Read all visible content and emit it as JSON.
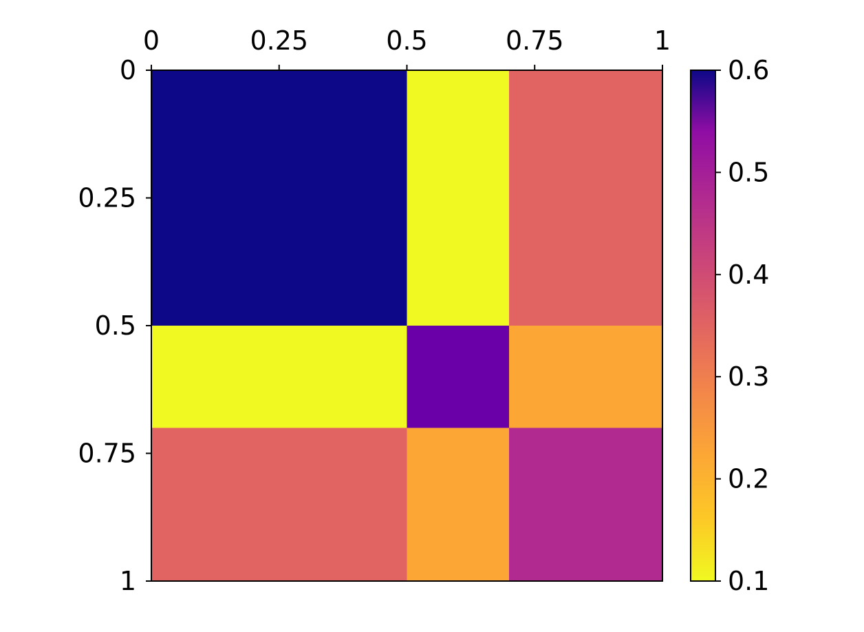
{
  "chart_data": {
    "type": "heatmap",
    "title": "",
    "xlabel": "",
    "ylabel": "",
    "x_axis_position": "top",
    "y_axis_inverted": true,
    "xlim": [
      0,
      1
    ],
    "ylim": [
      0,
      1
    ],
    "x_ticks": [
      0,
      0.25,
      0.5,
      0.75,
      1
    ],
    "x_tick_labels": [
      "0",
      "0.25",
      "0.5",
      "0.75",
      "1"
    ],
    "y_ticks": [
      0,
      0.25,
      0.5,
      0.75,
      1
    ],
    "y_tick_labels": [
      "0",
      "0.25",
      "0.5",
      "0.75",
      "1"
    ],
    "x_edges": [
      0,
      0.5,
      0.7,
      1
    ],
    "y_edges": [
      0,
      0.5,
      0.7,
      1
    ],
    "values": [
      [
        0.6,
        0.1,
        0.3
      ],
      [
        0.1,
        0.5,
        0.2
      ],
      [
        0.3,
        0.2,
        0.4
      ]
    ],
    "grid": false,
    "colorbar": {
      "colormap": "plasma (reversed)",
      "vmin": 0.1,
      "vmax": 0.6,
      "ticks": [
        0.1,
        0.2,
        0.3,
        0.4,
        0.5,
        0.6
      ],
      "tick_labels": [
        "0.1",
        "0.2",
        "0.3",
        "0.4",
        "0.5",
        "0.6"
      ],
      "placement": "right"
    },
    "colors": {
      "0.6": "#0d0887",
      "0.5": "#6a00a8",
      "0.4": "#b12a90",
      "0.3": "#e16462",
      "0.2": "#fca636",
      "0.1": "#f0f921"
    }
  }
}
